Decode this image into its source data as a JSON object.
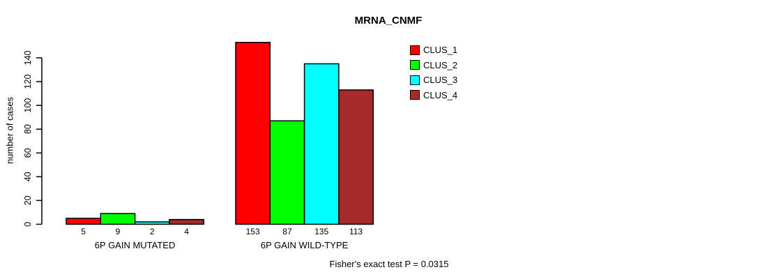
{
  "chart_data": {
    "type": "bar",
    "title": "MRNA_CNMF",
    "ylabel": "number of cases",
    "xlabel": "",
    "ylim": [
      0,
      140
    ],
    "yticks": [
      0,
      20,
      40,
      60,
      80,
      100,
      120,
      140
    ],
    "grid": false,
    "legend_position": "top-right",
    "categories": [
      "6P GAIN MUTATED",
      "6P GAIN WILD-TYPE"
    ],
    "series": [
      {
        "name": "CLUS_1",
        "color": "#FF0000",
        "values": [
          5,
          153
        ]
      },
      {
        "name": "CLUS_2",
        "color": "#00FF00",
        "values": [
          9,
          87
        ]
      },
      {
        "name": "CLUS_3",
        "color": "#00FFFF",
        "values": [
          2,
          135
        ]
      },
      {
        "name": "CLUS_4",
        "color": "#A52A2A",
        "values": [
          4,
          113
        ]
      }
    ],
    "bar_value_labels": [
      [
        "5",
        "9",
        "2",
        "4"
      ],
      [
        "153",
        "87",
        "135",
        "113"
      ]
    ],
    "footnote": "Fisher's exact test P = 0.0315",
    "axis_color": "#000000",
    "bar_border_color": "#000000"
  }
}
